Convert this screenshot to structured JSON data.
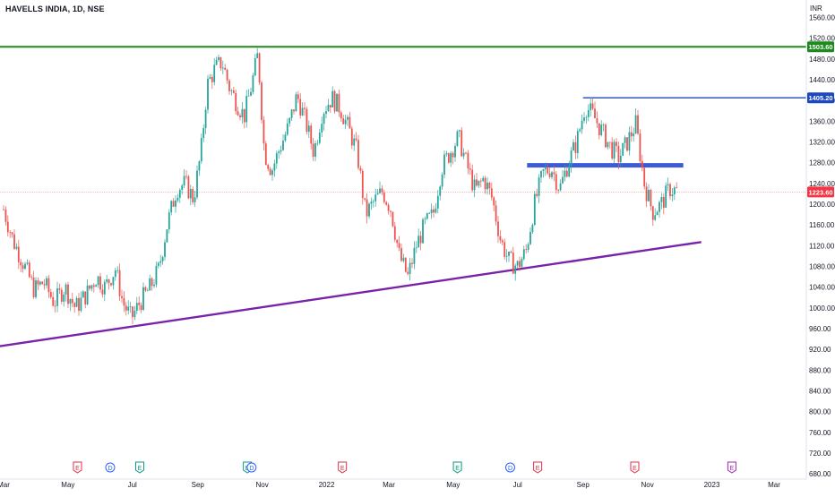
{
  "header": {
    "symbol_title": "HAVELLS INDIA, 1D, NSE"
  },
  "chart_data": {
    "type": "candlestick",
    "currency_label": "INR",
    "y_ticks": [
      1560,
      1520,
      1480,
      1440,
      1400,
      1360,
      1320,
      1280,
      1240,
      1200,
      1160,
      1120,
      1080,
      1040,
      1000,
      960,
      920,
      880,
      840,
      800,
      760,
      720,
      680
    ],
    "y_tick_labels": [
      "1560.00",
      "1520.00",
      "1480.00",
      "1440.00",
      "1400.00",
      "1360.00",
      "1320.00",
      "1280.00",
      "1240.00",
      "1200.00",
      "1160.00",
      "1120.00",
      "1080.00",
      "1040.00",
      "1000.00",
      "960.00",
      "920.00",
      "880.00",
      "840.00",
      "800.00",
      "760.00",
      "720.00",
      "680.00"
    ],
    "ylim": [
      675,
      1580
    ],
    "x_axis_labels": [
      {
        "label": "Mar",
        "date": "2021-03-01"
      },
      {
        "label": "May",
        "date": "2021-05-01"
      },
      {
        "label": "Jul",
        "date": "2021-07-01"
      },
      {
        "label": "Sep",
        "date": "2021-09-01"
      },
      {
        "label": "Nov",
        "date": "2021-11-01"
      },
      {
        "label": "2022",
        "date": "2022-01-01"
      },
      {
        "label": "Mar",
        "date": "2022-03-01"
      },
      {
        "label": "May",
        "date": "2022-05-01"
      },
      {
        "label": "Jul",
        "date": "2022-07-01"
      },
      {
        "label": "Sep",
        "date": "2022-09-01"
      },
      {
        "label": "Nov",
        "date": "2022-11-01"
      },
      {
        "label": "2023",
        "date": "2023-01-01"
      },
      {
        "label": "Mar",
        "date": "2023-03-01"
      }
    ],
    "current_price": 1223.6,
    "current_price_label": "1223.60",
    "horizontal_lines": [
      {
        "price": 1503.6,
        "label": "1503.60",
        "color": "#1e8a1e",
        "start_date": "2021-02-15"
      },
      {
        "price": 1405.2,
        "label": "1405.20",
        "color": "#1b47c2",
        "start_date": "2022-09-01"
      }
    ],
    "zones": [
      {
        "price": 1275,
        "start_date": "2022-07-10",
        "end_date": "2022-12-05",
        "color": "#3d5bd9"
      }
    ],
    "trendlines": [
      {
        "color": "#7a22a8",
        "points": [
          {
            "date": "2021-02-15",
            "price": 923
          },
          {
            "date": "2022-12-22",
            "price": 1127
          }
        ]
      }
    ],
    "candles": [
      {
        "date": "2021-03-01",
        "price": 1190
      },
      {
        "date": "2021-03-10",
        "price": 1130
      },
      {
        "date": "2021-03-20",
        "price": 1085
      },
      {
        "date": "2021-03-30",
        "price": 1035
      },
      {
        "date": "2021-04-08",
        "price": 1050
      },
      {
        "date": "2021-04-18",
        "price": 1010
      },
      {
        "date": "2021-04-28",
        "price": 1040
      },
      {
        "date": "2021-05-08",
        "price": 1000
      },
      {
        "date": "2021-05-18",
        "price": 1025
      },
      {
        "date": "2021-05-28",
        "price": 1060
      },
      {
        "date": "2021-06-05",
        "price": 1040
      },
      {
        "date": "2021-06-15",
        "price": 1075
      },
      {
        "date": "2021-06-22",
        "price": 1010
      },
      {
        "date": "2021-06-30",
        "price": 980
      },
      {
        "date": "2021-07-08",
        "price": 1010
      },
      {
        "date": "2021-07-18",
        "price": 1040
      },
      {
        "date": "2021-07-26",
        "price": 1075
      },
      {
        "date": "2021-08-03",
        "price": 1160
      },
      {
        "date": "2021-08-12",
        "price": 1230
      },
      {
        "date": "2021-08-20",
        "price": 1240
      },
      {
        "date": "2021-08-28",
        "price": 1210
      },
      {
        "date": "2021-09-04",
        "price": 1300
      },
      {
        "date": "2021-09-10",
        "price": 1430
      },
      {
        "date": "2021-09-17",
        "price": 1460
      },
      {
        "date": "2021-09-24",
        "price": 1475
      },
      {
        "date": "2021-10-01",
        "price": 1425
      },
      {
        "date": "2021-10-08",
        "price": 1395
      },
      {
        "date": "2021-10-15",
        "price": 1370
      },
      {
        "date": "2021-10-22",
        "price": 1430
      },
      {
        "date": "2021-10-28",
        "price": 1490
      },
      {
        "date": "2021-11-03",
        "price": 1300
      },
      {
        "date": "2021-11-10",
        "price": 1265
      },
      {
        "date": "2021-11-18",
        "price": 1310
      },
      {
        "date": "2021-11-26",
        "price": 1350
      },
      {
        "date": "2021-12-04",
        "price": 1410
      },
      {
        "date": "2021-12-12",
        "price": 1360
      },
      {
        "date": "2021-12-20",
        "price": 1300
      },
      {
        "date": "2021-12-28",
        "price": 1380
      },
      {
        "date": "2022-01-06",
        "price": 1405
      },
      {
        "date": "2022-01-14",
        "price": 1385
      },
      {
        "date": "2022-01-22",
        "price": 1345
      },
      {
        "date": "2022-01-30",
        "price": 1300
      },
      {
        "date": "2022-02-07",
        "price": 1180
      },
      {
        "date": "2022-02-15",
        "price": 1205
      },
      {
        "date": "2022-02-23",
        "price": 1225
      },
      {
        "date": "2022-03-03",
        "price": 1190
      },
      {
        "date": "2022-03-11",
        "price": 1100
      },
      {
        "date": "2022-03-19",
        "price": 1060
      },
      {
        "date": "2022-03-27",
        "price": 1120
      },
      {
        "date": "2022-04-04",
        "price": 1160
      },
      {
        "date": "2022-04-12",
        "price": 1180
      },
      {
        "date": "2022-04-20",
        "price": 1270
      },
      {
        "date": "2022-04-28",
        "price": 1300
      },
      {
        "date": "2022-05-06",
        "price": 1330
      },
      {
        "date": "2022-05-14",
        "price": 1275
      },
      {
        "date": "2022-05-22",
        "price": 1225
      },
      {
        "date": "2022-05-30",
        "price": 1250
      },
      {
        "date": "2022-06-07",
        "price": 1210
      },
      {
        "date": "2022-06-15",
        "price": 1130
      },
      {
        "date": "2022-06-23",
        "price": 1090
      },
      {
        "date": "2022-07-01",
        "price": 1080
      },
      {
        "date": "2022-07-09",
        "price": 1110
      },
      {
        "date": "2022-07-17",
        "price": 1200
      },
      {
        "date": "2022-07-25",
        "price": 1260
      },
      {
        "date": "2022-08-02",
        "price": 1270
      },
      {
        "date": "2022-08-10",
        "price": 1230
      },
      {
        "date": "2022-08-18",
        "price": 1280
      },
      {
        "date": "2022-08-26",
        "price": 1320
      },
      {
        "date": "2022-09-03",
        "price": 1390
      },
      {
        "date": "2022-09-11",
        "price": 1370
      },
      {
        "date": "2022-09-19",
        "price": 1340
      },
      {
        "date": "2022-09-27",
        "price": 1310
      },
      {
        "date": "2022-10-05",
        "price": 1290
      },
      {
        "date": "2022-10-13",
        "price": 1320
      },
      {
        "date": "2022-10-21",
        "price": 1355
      },
      {
        "date": "2022-10-29",
        "price": 1240
      },
      {
        "date": "2022-11-06",
        "price": 1185
      },
      {
        "date": "2022-11-14",
        "price": 1200
      },
      {
        "date": "2022-11-22",
        "price": 1230
      },
      {
        "date": "2022-11-30",
        "price": 1225
      }
    ],
    "event_markers": [
      {
        "date": "2021-05-10",
        "letter": "E",
        "color": "#e0304a"
      },
      {
        "date": "2021-06-10",
        "letter": "D",
        "color": "#2962ff"
      },
      {
        "date": "2021-07-08",
        "letter": "E",
        "color": "#089981"
      },
      {
        "date": "2021-10-18",
        "letter": "E",
        "color": "#089981"
      },
      {
        "date": "2021-10-22",
        "letter": "D",
        "color": "#2962ff"
      },
      {
        "date": "2022-01-16",
        "letter": "E",
        "color": "#e0304a"
      },
      {
        "date": "2022-05-05",
        "letter": "E",
        "color": "#089981"
      },
      {
        "date": "2022-06-24",
        "letter": "D",
        "color": "#2962ff"
      },
      {
        "date": "2022-07-20",
        "letter": "E",
        "color": "#e0304a"
      },
      {
        "date": "2022-10-20",
        "letter": "E",
        "color": "#e0304a"
      },
      {
        "date": "2023-01-20",
        "letter": "E",
        "color": "#9c27b0"
      }
    ],
    "colors": {
      "up": "#26a69a",
      "down": "#ef5350",
      "grid_line": "#f0a3a3"
    }
  }
}
